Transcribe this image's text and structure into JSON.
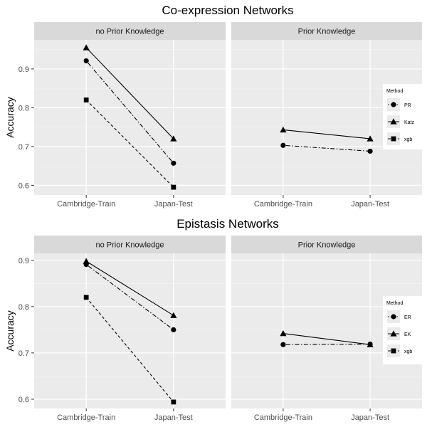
{
  "chart_data": [
    {
      "type": "line",
      "title": "Co-expression Networks",
      "xlabel": "",
      "ylabel": "Accuracy",
      "categories": [
        "Cambridge-Train",
        "Japan-Test"
      ],
      "ylim": [
        0.575,
        0.975
      ],
      "yticks": [
        0.6,
        0.7,
        0.8,
        0.9
      ],
      "grid": true,
      "legend": {
        "title": "Method",
        "position": "right"
      },
      "facets": [
        {
          "label": "no Prior Knowledge",
          "series": [
            {
              "name": "PR",
              "linetype": "dotdash",
              "shape": "circle",
              "values": [
                0.921,
                0.657
              ]
            },
            {
              "name": "Katz",
              "linetype": "solid",
              "shape": "triangle",
              "values": [
                0.955,
                0.72
              ]
            },
            {
              "name": "xgb",
              "linetype": "dashed",
              "shape": "square",
              "values": [
                0.82,
                0.595
              ]
            }
          ]
        },
        {
          "label": "Prior Knowledge",
          "series": [
            {
              "name": "PR",
              "linetype": "dotdash",
              "shape": "circle",
              "values": [
                0.703,
                0.688
              ]
            },
            {
              "name": "Katz",
              "linetype": "solid",
              "shape": "triangle",
              "values": [
                0.743,
                0.72
              ]
            }
          ]
        }
      ]
    },
    {
      "type": "line",
      "title": "Epistasis Networks",
      "xlabel": "",
      "ylabel": "Accuracy",
      "categories": [
        "Cambridge-Train",
        "Japan-Test"
      ],
      "ylim": [
        0.58,
        0.915
      ],
      "yticks": [
        0.6,
        0.7,
        0.8,
        0.9
      ],
      "grid": true,
      "legend": {
        "title": "Method",
        "position": "right"
      },
      "facets": [
        {
          "label": "no Prior Knowledge",
          "series": [
            {
              "name": "ER",
              "linetype": "dotdash",
              "shape": "circle",
              "values": [
                0.891,
                0.75
              ]
            },
            {
              "name": "EK",
              "linetype": "solid",
              "shape": "triangle",
              "values": [
                0.898,
                0.781
              ]
            },
            {
              "name": "xgb",
              "linetype": "dashed",
              "shape": "square",
              "values": [
                0.82,
                0.594
              ]
            }
          ]
        },
        {
          "label": "Prior Knowledge",
          "series": [
            {
              "name": "ER",
              "linetype": "dotdash",
              "shape": "circle",
              "values": [
                0.718,
                0.719
              ]
            },
            {
              "name": "EK",
              "linetype": "solid",
              "shape": "triangle",
              "values": [
                0.742,
                0.718
              ]
            }
          ]
        }
      ]
    }
  ]
}
